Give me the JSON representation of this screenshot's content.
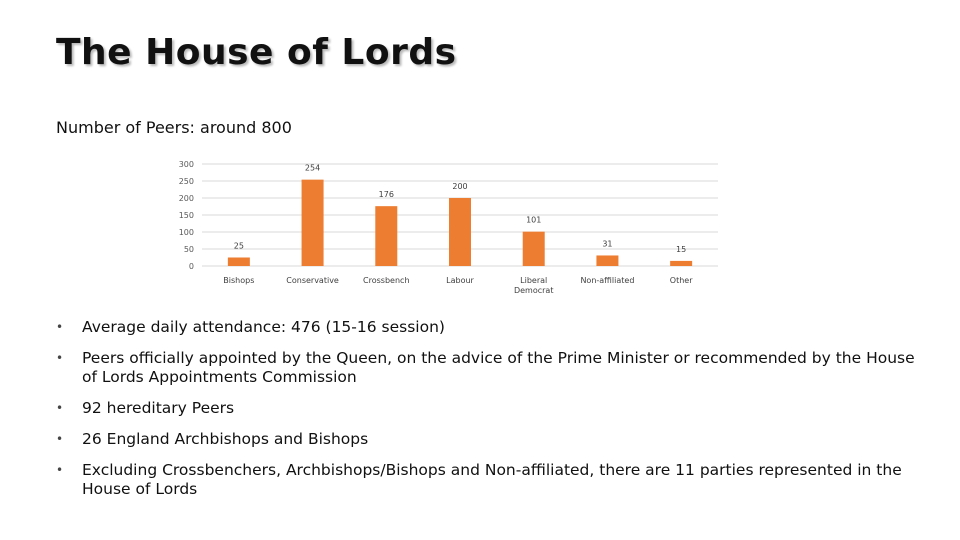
{
  "slide": {
    "title": "The House of Lords",
    "subtitle": "Number of Peers: around 800",
    "bullets": [
      {
        "text": "Average daily attendance: 476 (15-16 session)"
      },
      {
        "text": "Peers officially appointed by the Queen, on the advice of the Prime Minister or recommended by the House of Lords Appointments Commission"
      },
      {
        "text": "92 hereditary Peers"
      },
      {
        "text": "26 England Archbishops and Bishops"
      },
      {
        "text": "Excluding Crossbenchers, Archbishops/Bishops and Non-affiliated, there are 11 parties represented in the House of Lords"
      }
    ],
    "bullet_glyph": "•"
  },
  "chart_data": {
    "type": "bar",
    "categories": [
      "Bishops",
      "Conservative",
      "Crossbench",
      "Labour",
      "Liberal Democrat",
      "Non-affiliated",
      "Other"
    ],
    "values": [
      25,
      254,
      176,
      200,
      101,
      31,
      15
    ],
    "ylim": [
      0,
      300
    ],
    "yticks": [
      0,
      50,
      100,
      150,
      200,
      250,
      300
    ],
    "grid": true,
    "bar_color": "#ED7D31",
    "grid_color": "#D9D9D9",
    "legend": "none"
  }
}
